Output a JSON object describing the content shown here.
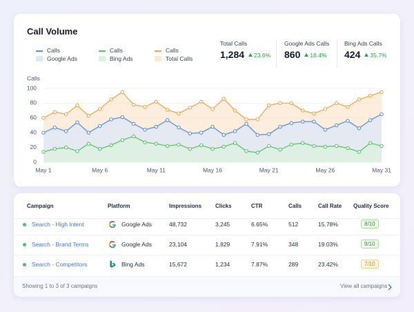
{
  "header": {
    "title": "Call Volume"
  },
  "kpis": [
    {
      "label": "Total Calls",
      "value": "1,284",
      "change": "23.6%"
    },
    {
      "label": "Google Ads Calls",
      "value": "860",
      "change": "18.4%"
    },
    {
      "label": "Bing Ads Calls",
      "value": "424",
      "change": "35.7%"
    }
  ],
  "chart_data": {
    "type": "line",
    "y_label": "Calls",
    "categories": [
      "May 1",
      null,
      null,
      null,
      null,
      "May 6",
      null,
      null,
      null,
      null,
      "May 11",
      null,
      null,
      null,
      null,
      "May 16",
      null,
      null,
      null,
      null,
      "May 21",
      null,
      null,
      null,
      null,
      "May 26",
      null,
      null,
      null,
      null,
      "May 31"
    ],
    "ylim": [
      0,
      100
    ],
    "yticks": [
      0,
      20,
      40,
      60,
      80,
      100
    ],
    "series": [
      {
        "name": "Google Ads",
        "line_label": "Calls",
        "color": "#5b8fd6",
        "area_color": "#dce7f8",
        "values": [
          40,
          47,
          42,
          54,
          40,
          49,
          58,
          61,
          52,
          44,
          48,
          57,
          47,
          39,
          40,
          48,
          37,
          42,
          52,
          37,
          38,
          48,
          53,
          55,
          55,
          44,
          50,
          56,
          46,
          57,
          65
        ]
      },
      {
        "name": "Bing Ads",
        "line_label": "Calls",
        "color": "#5cc26a",
        "area_color": "#dcf2de",
        "values": [
          14,
          18,
          20,
          15,
          25,
          18,
          23,
          30,
          35,
          27,
          25,
          22,
          24,
          18,
          23,
          18,
          21,
          26,
          15,
          13,
          22,
          17,
          24,
          26,
          22,
          21,
          22,
          19,
          14,
          26,
          22
        ]
      },
      {
        "name": "Total Calls",
        "line_label": "Calls",
        "color": "#e8a94f",
        "area_color": "#fbe7d2",
        "values": [
          60,
          68,
          65,
          77,
          63,
          72,
          85,
          95,
          78,
          75,
          82,
          71,
          66,
          74,
          82,
          72,
          86,
          70,
          58,
          58,
          77,
          80,
          80,
          70,
          66,
          72,
          80,
          75,
          85,
          90,
          95
        ]
      }
    ]
  },
  "table": {
    "headers": [
      "Campaign",
      "Platform",
      "Impressions",
      "Clicks",
      "CTR",
      "Calls",
      "Call Rate",
      "Quality Score"
    ],
    "rows": [
      [
        "Search - High Intent",
        "Google Ads",
        "48,732",
        "3,245",
        "6.65%",
        "512",
        "15.78%",
        "8/10"
      ],
      [
        "Search - Brand Terms",
        "Google Ads",
        "23,104",
        "1,829",
        "7.91%",
        "348",
        "19.03%",
        "9/10"
      ],
      [
        "Search - Competitors",
        "Bing Ads",
        "15,672",
        "1,234",
        "7.87%",
        "289",
        "23.42%",
        "7/10"
      ]
    ]
  },
  "footer": {
    "summary": "Showing 1 to 3 of 3 campaigns",
    "link": "View all campaigns"
  }
}
